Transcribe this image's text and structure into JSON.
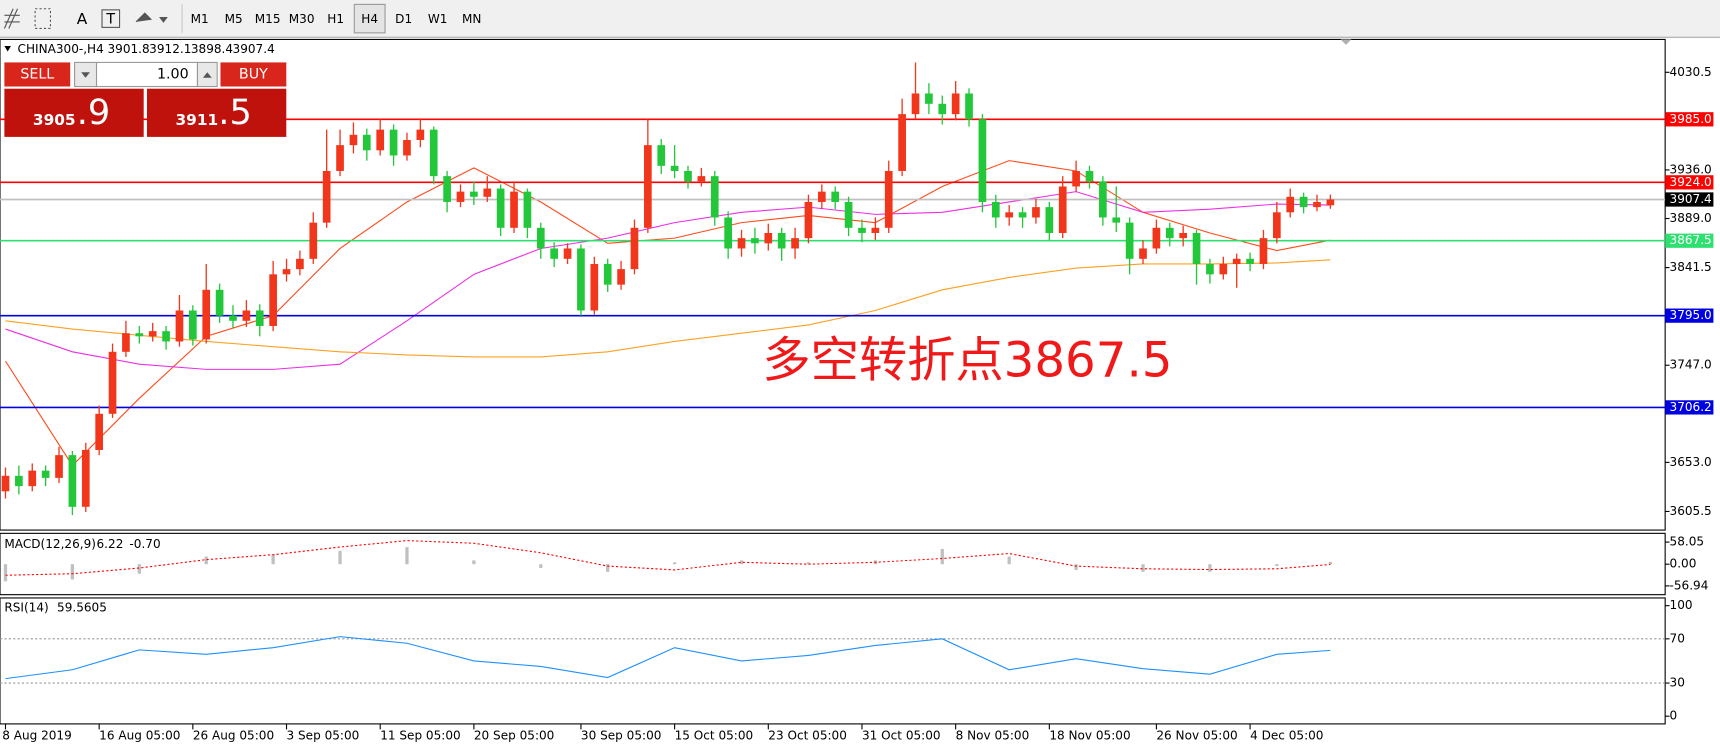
{
  "toolbar": {
    "text_tool": "A",
    "label_tool": "T",
    "timeframes": [
      "M1",
      "M5",
      "M15",
      "M30",
      "H1",
      "H4",
      "D1",
      "W1",
      "MN"
    ],
    "selected": "H4"
  },
  "trade_panel": {
    "sell": "SELL",
    "buy": "BUY",
    "volume": "1.00",
    "sell_price": {
      "prefix": "3905",
      "pips": ".9"
    },
    "buy_price": {
      "prefix": "3911",
      "pips": ".5"
    }
  },
  "chart_data": [
    {
      "type": "candlestick",
      "title": "CHINA300-,H4",
      "up_color": "#f2361c",
      "down_color": "#22c83a",
      "categories": [
        "8 Aug 2019",
        null,
        null,
        null,
        null,
        null,
        null,
        "16 Aug 05:00",
        null,
        null,
        null,
        null,
        null,
        null,
        "26 Aug 05:00",
        null,
        null,
        null,
        null,
        null,
        null,
        "3 Sep 05:00",
        null,
        null,
        null,
        null,
        null,
        null,
        "11 Sep 05:00",
        null,
        null,
        null,
        null,
        null,
        null,
        "20 Sep 05:00",
        null,
        null,
        null,
        null,
        null,
        null,
        null,
        "30 Sep 05:00",
        null,
        null,
        null,
        null,
        null,
        null,
        "15 Oct 05:00",
        null,
        null,
        null,
        null,
        null,
        null,
        "23 Oct 05:00",
        null,
        null,
        null,
        null,
        null,
        null,
        "31 Oct 05:00",
        null,
        null,
        null,
        null,
        null,
        null,
        "8 Nov 05:00",
        null,
        null,
        null,
        null,
        null,
        null,
        "18 Nov 05:00",
        null,
        null,
        null,
        null,
        null,
        null,
        null,
        "26 Nov 05:00",
        null,
        null,
        null,
        null,
        null,
        null,
        "4 Dec 05:00",
        null,
        null,
        null,
        null,
        null,
        null
      ],
      "candles": [
        [
          3625,
          3648,
          3618,
          3640
        ],
        [
          3640,
          3650,
          3622,
          3630
        ],
        [
          3630,
          3652,
          3625,
          3645
        ],
        [
          3645,
          3650,
          3630,
          3638
        ],
        [
          3638,
          3668,
          3633,
          3660
        ],
        [
          3660,
          3664,
          3602,
          3610
        ],
        [
          3610,
          3672,
          3605,
          3665
        ],
        [
          3665,
          3708,
          3660,
          3700
        ],
        [
          3700,
          3768,
          3696,
          3760
        ],
        [
          3760,
          3790,
          3755,
          3778
        ],
        [
          3778,
          3785,
          3768,
          3775
        ],
        [
          3775,
          3788,
          3770,
          3780
        ],
        [
          3780,
          3785,
          3762,
          3770
        ],
        [
          3770,
          3815,
          3765,
          3800
        ],
        [
          3800,
          3805,
          3766,
          3772
        ],
        [
          3772,
          3845,
          3768,
          3820
        ],
        [
          3820,
          3826,
          3788,
          3795
        ],
        [
          3795,
          3805,
          3783,
          3790
        ],
        [
          3790,
          3810,
          3784,
          3800
        ],
        [
          3800,
          3806,
          3775,
          3785
        ],
        [
          3785,
          3848,
          3780,
          3835
        ],
        [
          3835,
          3850,
          3828,
          3840
        ],
        [
          3840,
          3858,
          3834,
          3850
        ],
        [
          3850,
          3895,
          3845,
          3885
        ],
        [
          3885,
          3975,
          3880,
          3935
        ],
        [
          3935,
          3975,
          3930,
          3960
        ],
        [
          3960,
          3982,
          3952,
          3970
        ],
        [
          3970,
          3976,
          3945,
          3955
        ],
        [
          3955,
          3985,
          3950,
          3975
        ],
        [
          3975,
          3980,
          3940,
          3950
        ],
        [
          3950,
          3972,
          3945,
          3965
        ],
        [
          3965,
          3986,
          3958,
          3975
        ],
        [
          3975,
          3978,
          3922,
          3930
        ],
        [
          3930,
          3935,
          3895,
          3905
        ],
        [
          3905,
          3922,
          3900,
          3915
        ],
        [
          3915,
          3925,
          3902,
          3910
        ],
        [
          3910,
          3930,
          3905,
          3918
        ],
        [
          3918,
          3922,
          3872,
          3880
        ],
        [
          3880,
          3924,
          3875,
          3915
        ],
        [
          3915,
          3918,
          3870,
          3880
        ],
        [
          3880,
          3885,
          3850,
          3860
        ],
        [
          3860,
          3866,
          3842,
          3850
        ],
        [
          3850,
          3865,
          3845,
          3860
        ],
        [
          3860,
          3864,
          3795,
          3800
        ],
        [
          3800,
          3852,
          3796,
          3845
        ],
        [
          3845,
          3850,
          3818,
          3825
        ],
        [
          3825,
          3848,
          3820,
          3840
        ],
        [
          3840,
          3888,
          3835,
          3880
        ],
        [
          3880,
          3985,
          3875,
          3960
        ],
        [
          3960,
          3966,
          3932,
          3940
        ],
        [
          3940,
          3960,
          3928,
          3935
        ],
        [
          3935,
          3940,
          3918,
          3925
        ],
        [
          3925,
          3938,
          3920,
          3930
        ],
        [
          3930,
          3935,
          3882,
          3890
        ],
        [
          3890,
          3896,
          3850,
          3860
        ],
        [
          3860,
          3878,
          3852,
          3870
        ],
        [
          3870,
          3880,
          3855,
          3865
        ],
        [
          3865,
          3884,
          3858,
          3875
        ],
        [
          3875,
          3880,
          3848,
          3860
        ],
        [
          3860,
          3880,
          3850,
          3870
        ],
        [
          3870,
          3912,
          3865,
          3905
        ],
        [
          3905,
          3922,
          3898,
          3915
        ],
        [
          3915,
          3920,
          3898,
          3905
        ],
        [
          3905,
          3910,
          3872,
          3880
        ],
        [
          3880,
          3888,
          3866,
          3875
        ],
        [
          3875,
          3890,
          3868,
          3880
        ],
        [
          3880,
          3945,
          3875,
          3935
        ],
        [
          3935,
          4005,
          3930,
          3990
        ],
        [
          3990,
          4040,
          3985,
          4010
        ],
        [
          4010,
          4020,
          3990,
          4000
        ],
        [
          4000,
          4008,
          3980,
          3990
        ],
        [
          3990,
          4022,
          3984,
          4010
        ],
        [
          4010,
          4015,
          3978,
          3985
        ],
        [
          3985,
          3990,
          3895,
          3905
        ],
        [
          3905,
          3912,
          3880,
          3890
        ],
        [
          3890,
          3902,
          3882,
          3895
        ],
        [
          3895,
          3900,
          3880,
          3890
        ],
        [
          3890,
          3908,
          3884,
          3900
        ],
        [
          3900,
          3905,
          3868,
          3875
        ],
        [
          3875,
          3930,
          3870,
          3920
        ],
        [
          3920,
          3945,
          3915,
          3935
        ],
        [
          3935,
          3940,
          3918,
          3925
        ],
        [
          3925,
          3930,
          3882,
          3890
        ],
        [
          3890,
          3920,
          3876,
          3885
        ],
        [
          3885,
          3890,
          3835,
          3850
        ],
        [
          3850,
          3868,
          3845,
          3860
        ],
        [
          3860,
          3888,
          3855,
          3880
        ],
        [
          3880,
          3885,
          3862,
          3870
        ],
        [
          3870,
          3882,
          3862,
          3875
        ],
        [
          3875,
          3878,
          3825,
          3845
        ],
        [
          3845,
          3850,
          3826,
          3835
        ],
        [
          3835,
          3852,
          3830,
          3845
        ],
        [
          3845,
          3855,
          3822,
          3850
        ],
        [
          3850,
          3856,
          3838,
          3845
        ],
        [
          3845,
          3878,
          3840,
          3870
        ],
        [
          3870,
          3905,
          3865,
          3895
        ],
        [
          3895,
          3918,
          3890,
          3910
        ],
        [
          3910,
          3914,
          3894,
          3900
        ],
        [
          3900,
          3912,
          3896,
          3905
        ],
        [
          3901.8,
          3912.1,
          3898.4,
          3907.4
        ]
      ],
      "ylim": [
        3587.5,
        4062.3
      ],
      "yticks": [
        4030.5,
        {
          "value": 3936,
          "label": "3936.0"
        },
        {
          "value": 3889,
          "label": "3889.0"
        },
        3841.5,
        {
          "value": 3747,
          "label": "3747.0"
        },
        {
          "value": 3653,
          "label": "3653.0"
        },
        3605.5
      ],
      "moving_averages": [
        {
          "color": "#ff4a1a",
          "x": [
            0,
            5,
            10,
            15,
            20,
            25,
            30,
            35,
            40,
            45,
            50,
            55,
            60,
            65,
            70,
            75,
            80,
            85,
            90,
            95,
            99
          ],
          "values": [
            3751,
            3650,
            3715,
            3775,
            3795,
            3860,
            3905,
            3938,
            3905,
            3865,
            3870,
            3885,
            3892,
            3885,
            3920,
            3945,
            3935,
            3895,
            3875,
            3858,
            3868
          ]
        },
        {
          "color": "#ee2ee6",
          "x": [
            0,
            5,
            10,
            15,
            20,
            25,
            30,
            35,
            40,
            45,
            50,
            55,
            60,
            65,
            70,
            75,
            80,
            85,
            90,
            95,
            99
          ],
          "values": [
            3782,
            3760,
            3748,
            3743,
            3743,
            3748,
            3790,
            3835,
            3860,
            3870,
            3885,
            3895,
            3900,
            3893,
            3895,
            3905,
            3915,
            3895,
            3898,
            3903,
            3902
          ]
        },
        {
          "color": "#ffa020",
          "x": [
            0,
            5,
            10,
            15,
            20,
            25,
            30,
            35,
            40,
            45,
            50,
            55,
            60,
            65,
            70,
            75,
            80,
            85,
            90,
            95,
            99
          ],
          "values": [
            3790,
            3782,
            3776,
            3770,
            3765,
            3760,
            3757,
            3755,
            3755,
            3760,
            3770,
            3778,
            3786,
            3800,
            3820,
            3832,
            3841,
            3845,
            3845,
            3846,
            3849
          ]
        }
      ],
      "levels": [
        {
          "value": 3985,
          "label": "3985.0",
          "color": "#ff0000",
          "label_color": "#ff0000"
        },
        {
          "value": 3924,
          "label": "3924.0",
          "color": "#ff0000",
          "label_color": "#ff0000"
        },
        {
          "value": 3907.4,
          "label": "3907.4",
          "color": "#c0c0c0",
          "label_color": "#000000"
        },
        {
          "value": 3867.5,
          "label": "3867.5",
          "color": "#2ee070",
          "label_color": "#2ee070"
        },
        {
          "value": 3795,
          "label": "3795.0",
          "color": "#0000e0",
          "label_color": "#0000e0"
        },
        {
          "value": 3706.2,
          "label": "3706.2",
          "color": "#0000e0",
          "label_color": "#0000e0"
        }
      ],
      "annotation": {
        "text": "多空转折点3867.5",
        "color": "#f01818"
      }
    },
    {
      "type": "macd",
      "title": "MACD(12,26,9)",
      "header_values": [
        "6.22",
        "-0.70"
      ],
      "x": [
        0,
        5,
        10,
        15,
        20,
        25,
        30,
        35,
        40,
        45,
        50,
        55,
        60,
        65,
        70,
        75,
        80,
        85,
        90,
        95,
        99
      ],
      "histogram": [
        -45,
        -40,
        -25,
        20,
        25,
        35,
        45,
        10,
        -10,
        -20,
        5,
        10,
        5,
        10,
        40,
        20,
        -15,
        -20,
        -20,
        -5,
        6.22
      ],
      "signal": [
        -29,
        -25,
        -10,
        12,
        25,
        45,
        62,
        55,
        30,
        -5,
        -15,
        5,
        0,
        5,
        15,
        28,
        -5,
        -12,
        -14,
        -12,
        -0.7
      ],
      "histogram_color": "#c0c0c0",
      "signal_color": "#ff0000",
      "ylim": [
        -80,
        81
      ],
      "yticks": [
        58.05,
        {
          "value": 0,
          "label": "0.00"
        },
        -56.94
      ]
    },
    {
      "type": "line",
      "title": "RSI(14)",
      "x": [
        0,
        5,
        10,
        15,
        20,
        25,
        30,
        35,
        40,
        45,
        50,
        55,
        60,
        65,
        70,
        75,
        80,
        85,
        90,
        95,
        99
      ],
      "values": [
        34,
        42,
        60,
        56,
        62,
        72,
        66,
        50,
        45,
        35,
        62,
        50,
        55,
        64,
        70,
        42,
        52,
        43,
        38,
        56,
        59.5605
      ],
      "color": "#1e90ff",
      "ylim": [
        -6,
        106
      ],
      "yticks": [
        100,
        70,
        30,
        0
      ],
      "levels": [
        70,
        30
      ]
    }
  ]
}
